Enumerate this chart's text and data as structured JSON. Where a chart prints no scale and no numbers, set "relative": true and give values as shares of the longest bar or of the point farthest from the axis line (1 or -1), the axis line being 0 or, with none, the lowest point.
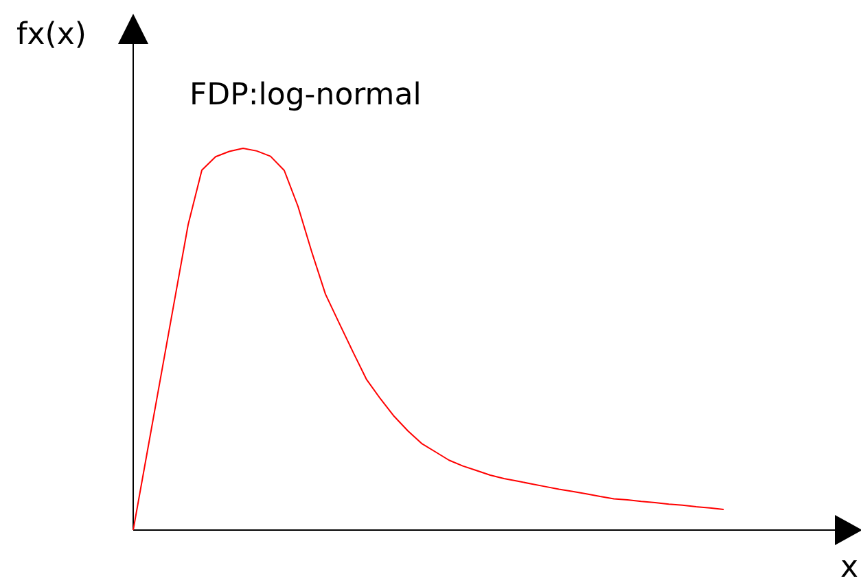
{
  "chart_data": {
    "type": "line",
    "title": "FDP:log-normal",
    "xlabel": "x",
    "ylabel": "fx(x)",
    "relative": true,
    "categories": [
      null,
      null,
      null,
      null,
      null,
      null,
      null,
      null,
      null,
      null,
      null,
      null,
      null,
      null,
      null,
      null,
      null,
      null,
      null,
      null,
      null,
      null,
      null,
      null,
      null,
      null,
      null,
      null,
      null,
      null,
      null,
      null,
      null,
      null,
      null,
      null,
      null,
      null,
      null,
      null,
      null,
      null,
      null,
      null
    ],
    "series": [
      {
        "color": "#ff0000",
        "values": [
          0,
          0.2,
          0.4,
          0.6,
          0.8,
          0.943,
          0.978,
          0.992,
          1,
          0.993,
          0.979,
          0.942,
          0.848,
          0.729,
          0.618,
          0.542,
          0.467,
          0.394,
          0.344,
          0.298,
          0.26,
          0.227,
          0.205,
          0.183,
          0.168,
          0.156,
          0.144,
          0.135,
          0.128,
          0.121,
          0.114,
          0.107,
          0.101,
          0.095,
          0.088,
          0.082,
          0.079,
          0.075,
          0.072,
          0.068,
          0.065,
          0.061,
          0.058,
          0.054
        ]
      }
    ]
  }
}
